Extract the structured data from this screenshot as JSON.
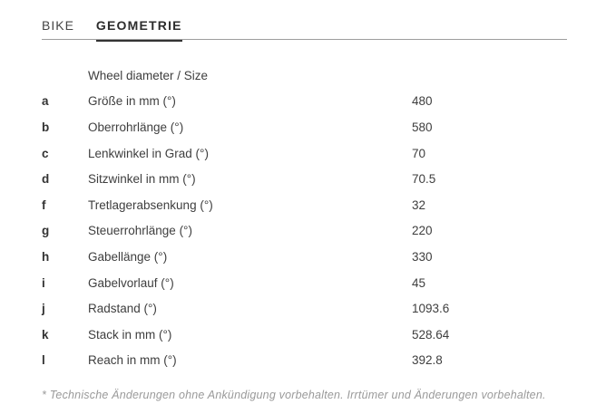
{
  "tabs": [
    {
      "label": "BIKE",
      "active": false
    },
    {
      "label": "GEOMETRIE",
      "active": true
    }
  ],
  "table": {
    "header": "Wheel diameter / Size",
    "rows": [
      {
        "key": "a",
        "label": "Größe in mm (°)",
        "value": "480"
      },
      {
        "key": "b",
        "label": "Oberrohrlänge (°)",
        "value": "580"
      },
      {
        "key": "c",
        "label": "Lenkwinkel in Grad (°)",
        "value": "70"
      },
      {
        "key": "d",
        "label": "Sitzwinkel in mm (°)",
        "value": "70.5"
      },
      {
        "key": "f",
        "label": "Tretlagerabsenkung (°)",
        "value": "32"
      },
      {
        "key": "g",
        "label": "Steuerrohrlänge (°)",
        "value": "220"
      },
      {
        "key": "h",
        "label": "Gabellänge (°)",
        "value": "330"
      },
      {
        "key": "i",
        "label": "Gabelvorlauf (°)",
        "value": "45"
      },
      {
        "key": "j",
        "label": "Radstand (°)",
        "value": "1093.6"
      },
      {
        "key": "k",
        "label": "Stack in mm (°)",
        "value": "528.64"
      },
      {
        "key": "l",
        "label": "Reach in mm (°)",
        "value": "392.8"
      }
    ]
  },
  "footnote": "* Technische Änderungen ohne Ankündigung vorbehalten. Irrtümer und Änderungen vorbehalten.",
  "colors": {
    "text": "#3e3e3e",
    "tab_active_underline": "#333333",
    "tabbar_divider": "#9d9d9d",
    "footnote_text": "#9a9a9a",
    "background": "#ffffff"
  }
}
